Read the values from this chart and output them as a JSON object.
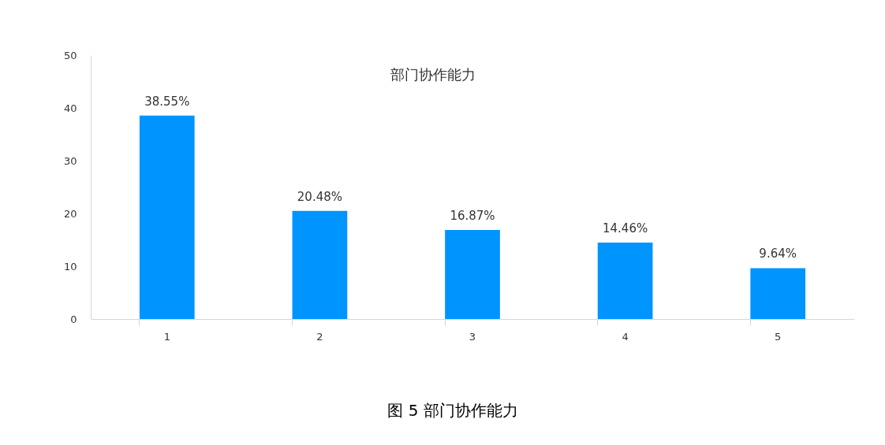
{
  "chart_data": {
    "type": "bar",
    "title": "部门协作能力",
    "categories": [
      "1",
      "2",
      "3",
      "4",
      "5"
    ],
    "values": [
      38.55,
      20.48,
      16.87,
      14.46,
      9.64
    ],
    "value_labels": [
      "38.55%",
      "20.48%",
      "16.87%",
      "14.46%",
      "9.64%"
    ],
    "color": "#0094ff",
    "ylim": [
      0,
      50
    ],
    "yticks": [
      0,
      10,
      20,
      30,
      40,
      50
    ],
    "grid": false,
    "annotations": [
      "图 5 部门协作能力"
    ]
  }
}
